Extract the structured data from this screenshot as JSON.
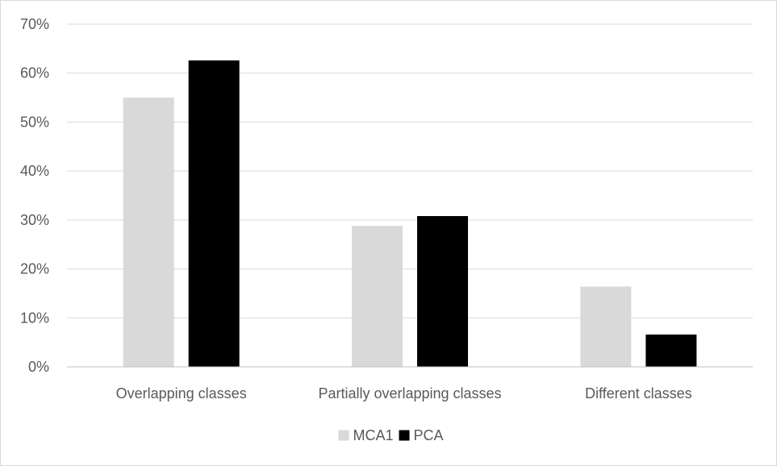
{
  "chart_data": {
    "type": "bar",
    "categories": [
      "Overlapping classes",
      "Partially overlapping classes",
      "Different classes"
    ],
    "series": [
      {
        "name": "MCA1",
        "values": [
          55,
          28.8,
          16.4
        ],
        "color": "#d9d9d9"
      },
      {
        "name": "PCA",
        "values": [
          62.6,
          30.8,
          6.6
        ],
        "color": "#000000"
      }
    ],
    "y_ticks": [
      "0%",
      "10%",
      "20%",
      "30%",
      "40%",
      "50%",
      "60%",
      "70%"
    ],
    "ylim": [
      0,
      70
    ],
    "grid": true,
    "legend_position": "bottom",
    "title": "",
    "xlabel": "",
    "ylabel": ""
  }
}
